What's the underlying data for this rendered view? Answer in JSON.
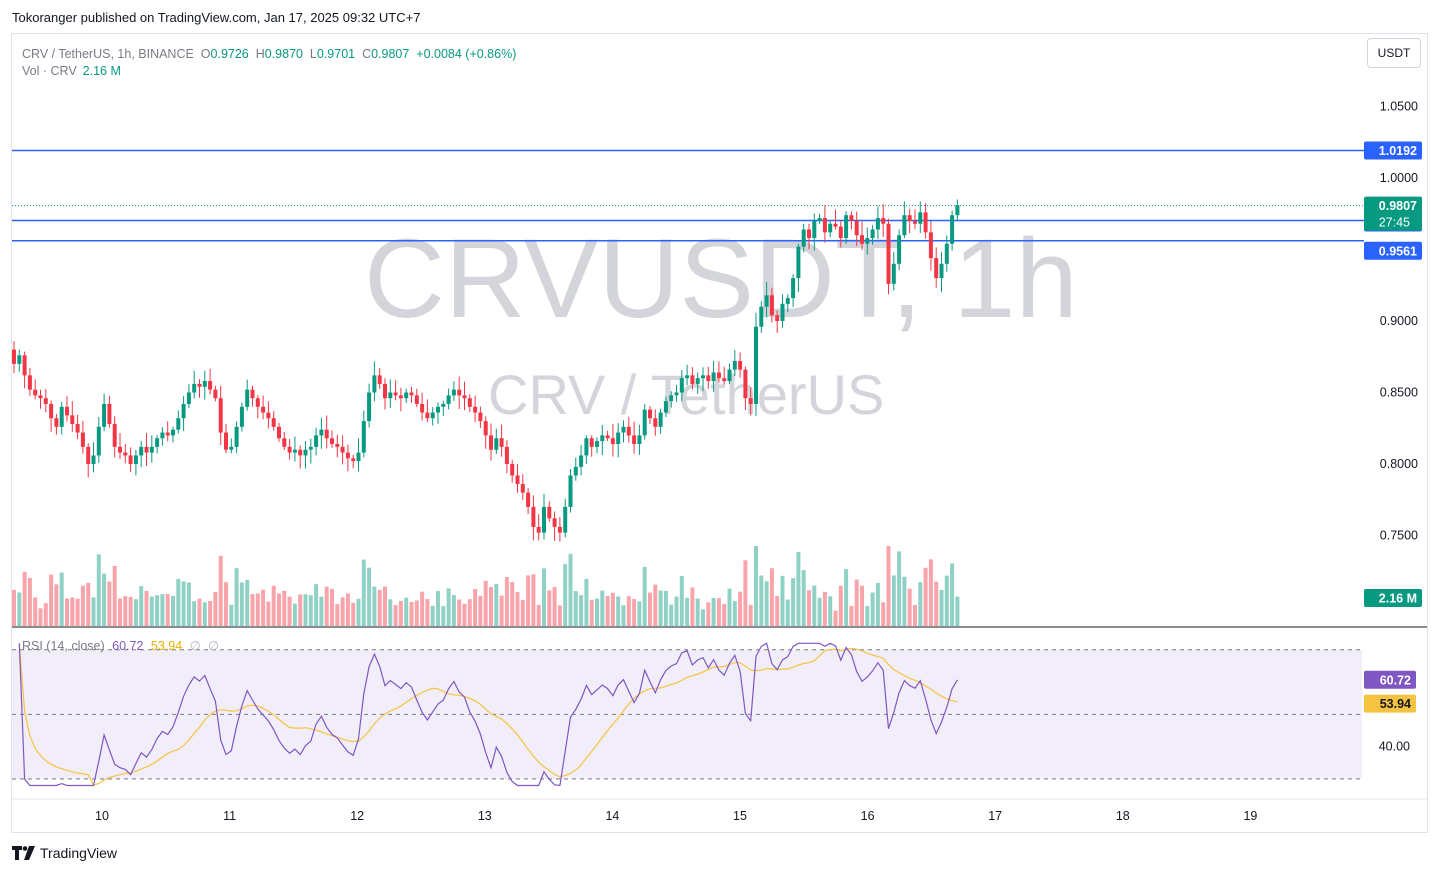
{
  "header": {
    "publisher": "Tokoranger published on TradingView.com, Jan 17, 2025 09:32 UTC+7"
  },
  "legend": {
    "symbol": "CRV / TetherUS, 1h, BINANCE",
    "open_label": "O",
    "open": "0.9726",
    "high_label": "H",
    "high": "0.9870",
    "low_label": "L",
    "low": "0.9701",
    "close_label": "C",
    "close": "0.9807",
    "change": "+0.0084 (+0.86%)",
    "vol_label": "Vol · CRV",
    "vol_value": "2.16 M"
  },
  "rsi_legend": {
    "label": "RSI (14, close)",
    "rsi": "60.72",
    "ma": "53.94",
    "v3": "∅",
    "v4": "∅"
  },
  "currency_button": "USDT",
  "watermark": {
    "main": "CRVUSDT, 1h",
    "sub": "CRV / TetherUS"
  },
  "brand": {
    "name": "TradingView",
    "icon": "tradingview-logo-icon"
  },
  "colors": {
    "up": "#089981",
    "down": "#f23645",
    "level": "#2962ff",
    "rsi": "#7e57c2",
    "rsi_ma": "#f5c342"
  },
  "chart_data": {
    "type": "candlestick",
    "price_axis": {
      "ticks": [
        "1.0500",
        "1.0000",
        "0.9000",
        "0.8500",
        "0.8000",
        "0.7500"
      ],
      "ylim": [
        0.7,
        1.07
      ]
    },
    "x_ticks": [
      "10",
      "11",
      "12",
      "13",
      "14",
      "15",
      "16",
      "17",
      "18",
      "19"
    ],
    "horizontal_levels": [
      {
        "label": "1.0192",
        "value": 1.0192
      },
      {
        "label": "0.9703",
        "value": 0.9703
      },
      {
        "label": "0.9561",
        "value": 0.9561
      }
    ],
    "last_price": {
      "label": "0.9807",
      "value": 0.9807,
      "countdown": "27:45"
    },
    "volume_label": "2.16 M",
    "close_series": [
      0.87,
      0.876,
      0.862,
      0.852,
      0.848,
      0.846,
      0.842,
      0.832,
      0.826,
      0.84,
      0.834,
      0.828,
      0.822,
      0.812,
      0.8,
      0.806,
      0.826,
      0.842,
      0.828,
      0.812,
      0.808,
      0.806,
      0.8,
      0.806,
      0.812,
      0.808,
      0.812,
      0.818,
      0.822,
      0.82,
      0.824,
      0.832,
      0.842,
      0.85,
      0.856,
      0.854,
      0.858,
      0.852,
      0.846,
      0.822,
      0.81,
      0.812,
      0.826,
      0.84,
      0.852,
      0.846,
      0.84,
      0.836,
      0.832,
      0.826,
      0.818,
      0.812,
      0.808,
      0.81,
      0.806,
      0.81,
      0.812,
      0.82,
      0.824,
      0.818,
      0.814,
      0.812,
      0.808,
      0.804,
      0.802,
      0.808,
      0.83,
      0.85,
      0.862,
      0.856,
      0.846,
      0.85,
      0.848,
      0.846,
      0.85,
      0.848,
      0.842,
      0.836,
      0.832,
      0.836,
      0.84,
      0.842,
      0.848,
      0.852,
      0.848,
      0.846,
      0.84,
      0.836,
      0.83,
      0.82,
      0.81,
      0.818,
      0.812,
      0.8,
      0.792,
      0.786,
      0.78,
      0.77,
      0.756,
      0.752,
      0.77,
      0.762,
      0.756,
      0.752,
      0.77,
      0.792,
      0.798,
      0.806,
      0.818,
      0.812,
      0.816,
      0.82,
      0.818,
      0.814,
      0.822,
      0.826,
      0.82,
      0.814,
      0.82,
      0.838,
      0.832,
      0.826,
      0.836,
      0.844,
      0.848,
      0.85,
      0.86,
      0.862,
      0.856,
      0.86,
      0.862,
      0.858,
      0.864,
      0.86,
      0.858,
      0.866,
      0.872,
      0.866,
      0.846,
      0.842,
      0.896,
      0.91,
      0.918,
      0.904,
      0.9,
      0.912,
      0.916,
      0.93,
      0.952,
      0.964,
      0.958,
      0.97,
      0.972,
      0.962,
      0.968,
      0.966,
      0.958,
      0.974,
      0.97,
      0.96,
      0.954,
      0.958,
      0.964,
      0.972,
      0.968,
      0.926,
      0.94,
      0.96,
      0.974,
      0.97,
      0.968,
      0.976,
      0.962,
      0.944,
      0.93,
      0.94,
      0.954,
      0.974,
      0.981
    ],
    "rsi_axis": {
      "ticks": [
        "40.00"
      ],
      "bands": [
        70,
        50,
        30
      ]
    },
    "rsi_value": 60.72,
    "rsi_ma_value": 53.94
  }
}
